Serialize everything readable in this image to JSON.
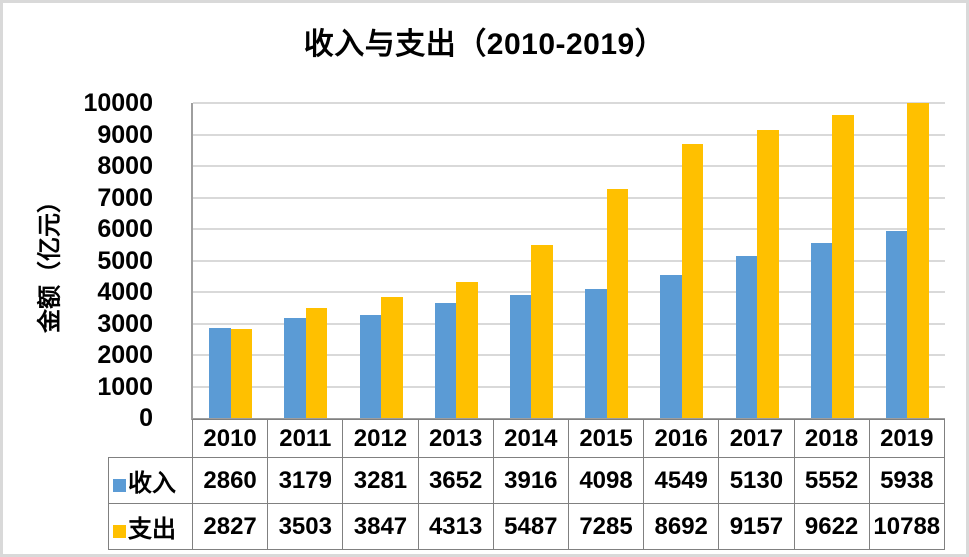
{
  "window": {
    "background": "#ffffff",
    "frame_border_color": "#d9d9d9"
  },
  "title": "收入与支出（2010-2019）",
  "chart_data": {
    "type": "bar",
    "title": "收入与支出（2010-2019）",
    "categories": [
      "2010",
      "2011",
      "2012",
      "2013",
      "2014",
      "2015",
      "2016",
      "2017",
      "2018",
      "2019"
    ],
    "series": [
      {
        "name": "收入",
        "color": "#5B9BD5",
        "values": [
          2860,
          3179,
          3281,
          3652,
          3916,
          4098,
          4549,
          5130,
          5552,
          5938
        ]
      },
      {
        "name": "支出",
        "color": "#FFC000",
        "values": [
          2827,
          3503,
          3847,
          4313,
          5487,
          7285,
          8692,
          9157,
          9622,
          10788
        ]
      }
    ],
    "xlabel": "",
    "ylabel": "金额（亿元）",
    "ylim": [
      0,
      10000
    ],
    "y_ticks": [
      0,
      1000,
      2000,
      3000,
      4000,
      5000,
      6000,
      7000,
      8000,
      9000,
      10000
    ],
    "grid": true,
    "gridline_color": "#d9d9d9",
    "axis_line_color": "#9e9e9e",
    "bars_clipped_at_max": true,
    "legend_position": "data-table-keys",
    "data_table": {
      "shown": true,
      "border_color": "#808080"
    }
  }
}
